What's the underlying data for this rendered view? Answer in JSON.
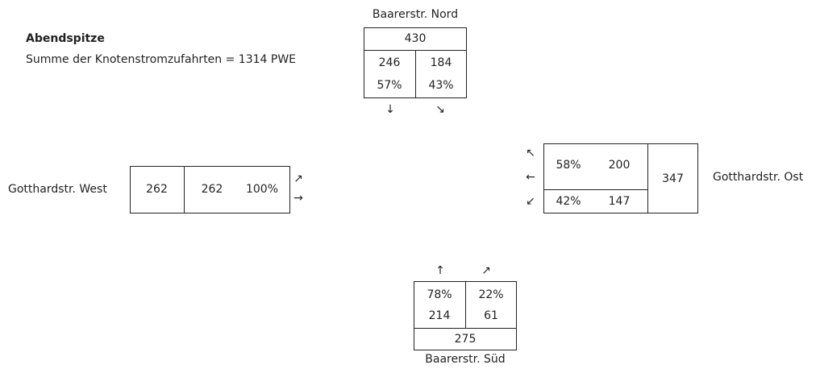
{
  "header": {
    "title": "Abendspitze",
    "subtitle": "Summe der Knotenstromzufahrten = 1314 PWE"
  },
  "north": {
    "name": "Baarerstr. Nord",
    "total": "430",
    "left_value": "246",
    "right_value": "184",
    "left_pct": "57%",
    "right_pct": "43%",
    "arrow_left": "↓",
    "arrow_right": "↘"
  },
  "west": {
    "name": "Gotthardstr. West",
    "total": "262",
    "value": "262",
    "pct": "100%",
    "arrow_top": "↗",
    "arrow_bottom": "→"
  },
  "east": {
    "name": "Gotthardstr. Ost",
    "total": "347",
    "top_pct": "58%",
    "top_value": "200",
    "bottom_pct": "42%",
    "bottom_value": "147",
    "arrow_top": "↖",
    "arrow_mid": "←",
    "arrow_bottom": "↙"
  },
  "south": {
    "name": "Baarerstr. Süd",
    "total": "275",
    "left_value": "214",
    "right_value": "61",
    "left_pct": "78%",
    "right_pct": "22%",
    "arrow_left": "↑",
    "arrow_right": "↗"
  }
}
